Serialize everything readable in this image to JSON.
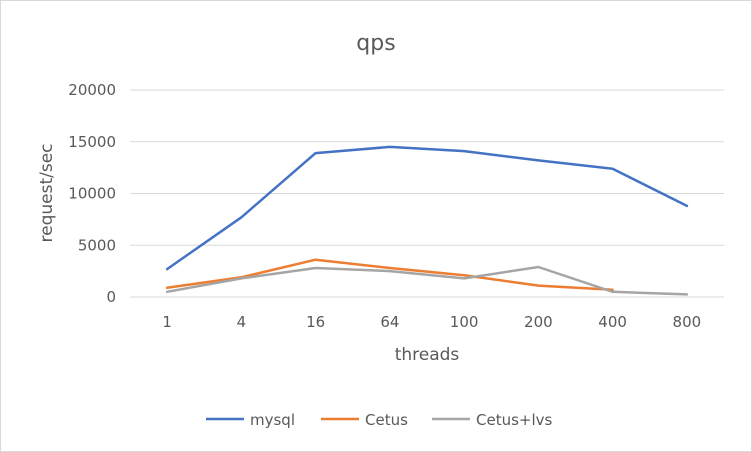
{
  "chart_data": {
    "type": "line",
    "title": "qps",
    "xlabel": "threads",
    "ylabel": "request/sec",
    "categories": [
      "1",
      "4",
      "16",
      "64",
      "100",
      "200",
      "400",
      "800"
    ],
    "ylim": [
      0,
      20000
    ],
    "yticks": [
      0,
      5000,
      10000,
      15000,
      20000
    ],
    "grid": true,
    "legend": "bottom",
    "series": [
      {
        "name": "mysql",
        "color": "#4472c4",
        "values": [
          2700,
          7700,
          13900,
          14500,
          14100,
          13200,
          12400,
          8800
        ]
      },
      {
        "name": "Cetus",
        "color": "#ed7d31",
        "values": [
          900,
          1900,
          3600,
          2800,
          2100,
          1100,
          700,
          null
        ]
      },
      {
        "name": "Cetus+lvs",
        "color": "#a5a5a5",
        "values": [
          500,
          1800,
          2800,
          2500,
          1800,
          2900,
          500,
          250
        ]
      }
    ]
  }
}
